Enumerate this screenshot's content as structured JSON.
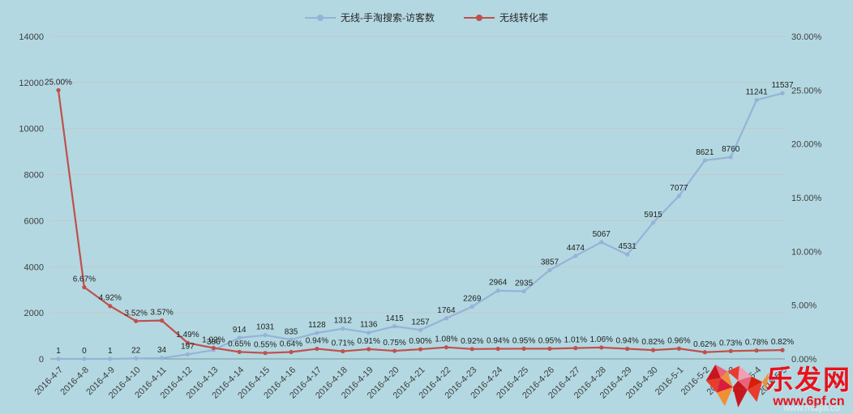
{
  "chart_data": {
    "type": "line",
    "background": "#b3d8e1",
    "legend_position": "top",
    "grid": true,
    "categories": [
      "2016-4-7",
      "2016-4-8",
      "2016-4-9",
      "2016-4-10",
      "2016-4-11",
      "2016-4-12",
      "2016-4-13",
      "2016-4-14",
      "2016-4-15",
      "2016-4-16",
      "2016-4-17",
      "2016-4-18",
      "2016-4-19",
      "2016-4-20",
      "2016-4-21",
      "2016-4-22",
      "2016-4-23",
      "2016-4-24",
      "2016-4-25",
      "2016-4-26",
      "2016-4-27",
      "2016-4-28",
      "2016-4-29",
      "2016-4-30",
      "2016-5-1",
      "2016-5-2",
      "2016-5-3",
      "2016-5-4",
      "2016-5-5"
    ],
    "series": [
      {
        "name": "无线-手淘搜索-访客数",
        "color": "#95b3d7",
        "axis": "left",
        "values": [
          1,
          0,
          1,
          22,
          34,
          197,
          386,
          914,
          1031,
          835,
          1128,
          1312,
          1136,
          1415,
          1257,
          1764,
          2269,
          2964,
          2935,
          3857,
          4474,
          5067,
          4531,
          5915,
          7077,
          8621,
          8760,
          11241,
          11537
        ],
        "labels": [
          "1",
          "0",
          "1",
          "22",
          "34",
          "197",
          "386",
          "914",
          "1031",
          "835",
          "1128",
          "1312",
          "1136",
          "1415",
          "1257",
          "1764",
          "2269",
          "2964",
          "2935",
          "3857",
          "4474",
          "5067",
          "4531",
          "5915",
          "7077",
          "8621",
          "8760",
          "11241",
          "11537"
        ]
      },
      {
        "name": "无线转化率",
        "color": "#c0504d",
        "axis": "right",
        "values": [
          25.0,
          6.67,
          4.92,
          3.52,
          3.57,
          1.49,
          1.02,
          0.65,
          0.55,
          0.64,
          0.94,
          0.71,
          0.91,
          0.75,
          0.9,
          1.08,
          0.92,
          0.94,
          0.95,
          0.95,
          1.01,
          1.06,
          0.94,
          0.82,
          0.96,
          0.62,
          0.73,
          0.78,
          0.82
        ],
        "labels": [
          "25.00%",
          "6.67%",
          "4.92%",
          "3.52%",
          "3.57%",
          "1.49%",
          "1.02%",
          "0.65%",
          "0.55%",
          "0.64%",
          "0.94%",
          "0.71%",
          "0.91%",
          "0.75%",
          "0.90%",
          "1.08%",
          "0.92%",
          "0.94%",
          "0.95%",
          "0.95%",
          "1.01%",
          "1.06%",
          "0.94%",
          "0.82%",
          "0.96%",
          "0.62%",
          "0.73%",
          "0.78%",
          "0.82%"
        ]
      }
    ],
    "left_axis": {
      "min": 0,
      "max": 14000,
      "step": 2000,
      "ticks": [
        "0",
        "2000",
        "4000",
        "6000",
        "8000",
        "10000",
        "12000",
        "14000"
      ]
    },
    "right_axis": {
      "min": 0,
      "max": 30,
      "step": 5,
      "ticks": [
        "0.00%",
        "5.00%",
        "10.00%",
        "15.00%",
        "20.00%",
        "25.00%",
        "30.00%"
      ]
    }
  },
  "watermark": {
    "site_name": "乐发网",
    "site_url": "www.6pf.cn",
    "faint_text": "www.maijia.co"
  }
}
